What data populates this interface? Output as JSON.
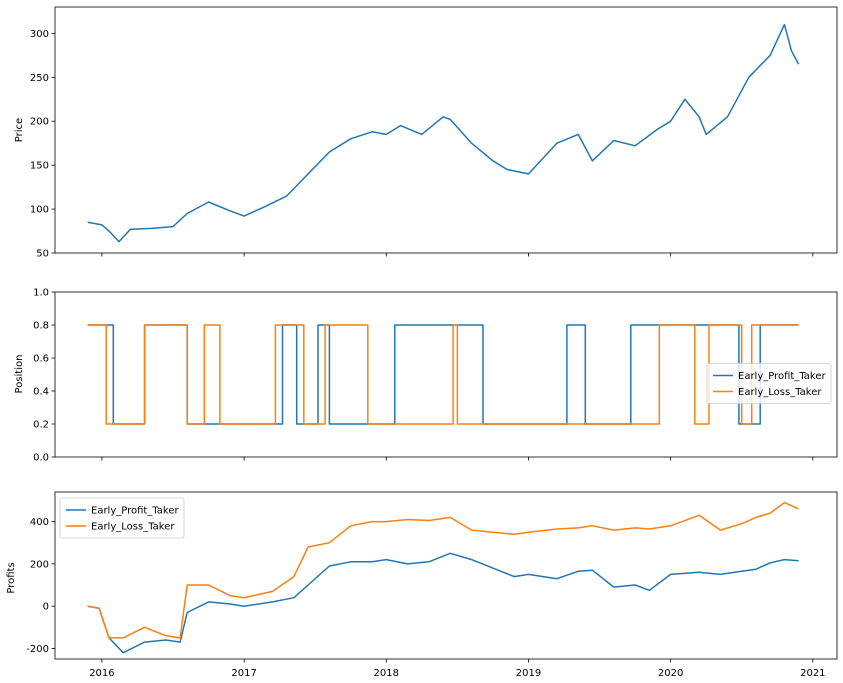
{
  "chart_data": [
    {
      "type": "line",
      "ylabel": "Price",
      "ylim": [
        50,
        330
      ],
      "yticks": [
        50,
        100,
        150,
        200,
        250,
        300
      ],
      "xlim": [
        2015.67,
        2021.17
      ],
      "x": [
        2015.9,
        2016.0,
        2016.05,
        2016.12,
        2016.2,
        2016.35,
        2016.5,
        2016.6,
        2016.75,
        2016.9,
        2017.0,
        2017.15,
        2017.3,
        2017.45,
        2017.6,
        2017.75,
        2017.9,
        2018.0,
        2018.1,
        2018.25,
        2018.4,
        2018.45,
        2018.6,
        2018.75,
        2018.85,
        2019.0,
        2019.2,
        2019.35,
        2019.45,
        2019.6,
        2019.75,
        2019.9,
        2020.0,
        2020.1,
        2020.2,
        2020.25,
        2020.4,
        2020.55,
        2020.7,
        2020.8,
        2020.85,
        2020.9
      ],
      "series": [
        {
          "color": "#1f77b4",
          "values": [
            85,
            82,
            75,
            63,
            77,
            78,
            80,
            95,
            108,
            98,
            92,
            103,
            115,
            140,
            165,
            180,
            188,
            185,
            195,
            185,
            205,
            202,
            175,
            155,
            145,
            140,
            175,
            185,
            155,
            178,
            172,
            190,
            200,
            225,
            205,
            185,
            205,
            250,
            275,
            310,
            280,
            265
          ]
        }
      ]
    },
    {
      "type": "line",
      "ylabel": "Position",
      "ylim": [
        0.0,
        1.0
      ],
      "yticks": [
        "0.0",
        "0.2",
        "0.4",
        "0.6",
        "0.8",
        "1.0"
      ],
      "xlim": [
        2015.67,
        2021.17
      ],
      "legend": {
        "position": "center-right"
      },
      "series": [
        {
          "name": "Early_Profit_Taker",
          "color": "#1f77b4",
          "x": [
            2015.9,
            2016.08,
            2016.08,
            2016.3,
            2016.3,
            2016.6,
            2016.6,
            2017.27,
            2017.27,
            2017.37,
            2017.37,
            2017.52,
            2017.52,
            2017.6,
            2017.6,
            2018.06,
            2018.06,
            2018.68,
            2018.68,
            2019.27,
            2019.27,
            2019.4,
            2019.4,
            2019.72,
            2019.72,
            2020.48,
            2020.48,
            2020.63,
            2020.63,
            2020.9
          ],
          "y": [
            0.8,
            0.8,
            0.2,
            0.2,
            0.8,
            0.8,
            0.2,
            0.2,
            0.8,
            0.8,
            0.2,
            0.2,
            0.8,
            0.8,
            0.2,
            0.2,
            0.8,
            0.8,
            0.2,
            0.2,
            0.8,
            0.8,
            0.2,
            0.2,
            0.8,
            0.8,
            0.2,
            0.2,
            0.8,
            0.8
          ]
        },
        {
          "name": "Early_Loss_Taker",
          "color": "#ff7f0e",
          "x": [
            2015.9,
            2016.03,
            2016.03,
            2016.3,
            2016.3,
            2016.6,
            2016.6,
            2016.72,
            2016.72,
            2016.83,
            2016.83,
            2017.22,
            2017.22,
            2017.42,
            2017.42,
            2017.57,
            2017.57,
            2017.87,
            2017.87,
            2018.47,
            2018.47,
            2018.5,
            2018.5,
            2019.92,
            2019.92,
            2020.17,
            2020.17,
            2020.27,
            2020.27,
            2020.5,
            2020.5,
            2020.57,
            2020.57,
            2020.9
          ],
          "y": [
            0.8,
            0.8,
            0.2,
            0.2,
            0.8,
            0.8,
            0.2,
            0.2,
            0.8,
            0.8,
            0.2,
            0.2,
            0.8,
            0.8,
            0.2,
            0.2,
            0.8,
            0.8,
            0.2,
            0.2,
            0.8,
            0.8,
            0.2,
            0.2,
            0.8,
            0.8,
            0.2,
            0.2,
            0.8,
            0.8,
            0.2,
            0.2,
            0.8,
            0.8
          ]
        }
      ]
    },
    {
      "type": "line",
      "ylabel": "Profits",
      "ylim": [
        -250,
        540
      ],
      "yticks": [
        -200,
        0,
        200,
        400
      ],
      "xlim": [
        2015.67,
        2021.17
      ],
      "xticks": [
        "2016",
        "2017",
        "2018",
        "2019",
        "2020",
        "2021"
      ],
      "legend": {
        "position": "upper-left"
      },
      "x": [
        2015.9,
        2015.98,
        2016.05,
        2016.15,
        2016.3,
        2016.45,
        2016.55,
        2016.6,
        2016.75,
        2016.9,
        2017.0,
        2017.2,
        2017.35,
        2017.45,
        2017.6,
        2017.75,
        2017.9,
        2018.0,
        2018.15,
        2018.3,
        2018.45,
        2018.6,
        2018.75,
        2018.9,
        2019.0,
        2019.2,
        2019.35,
        2019.45,
        2019.6,
        2019.75,
        2019.85,
        2020.0,
        2020.2,
        2020.35,
        2020.5,
        2020.6,
        2020.7,
        2020.8,
        2020.9
      ],
      "series": [
        {
          "name": "Early_Profit_Taker",
          "color": "#1f77b4",
          "values": [
            0,
            -10,
            -150,
            -220,
            -170,
            -160,
            -170,
            -30,
            20,
            10,
            0,
            20,
            40,
            100,
            190,
            210,
            210,
            220,
            200,
            210,
            250,
            220,
            180,
            140,
            150,
            130,
            165,
            170,
            90,
            100,
            75,
            150,
            160,
            150,
            165,
            175,
            205,
            220,
            215
          ]
        },
        {
          "name": "Early_Loss_Taker",
          "color": "#ff7f0e",
          "values": [
            0,
            -10,
            -150,
            -150,
            -100,
            -140,
            -150,
            100,
            100,
            50,
            40,
            70,
            140,
            280,
            300,
            380,
            400,
            400,
            410,
            405,
            420,
            360,
            350,
            340,
            350,
            365,
            370,
            380,
            360,
            370,
            365,
            380,
            430,
            360,
            390,
            420,
            440,
            490,
            460
          ]
        }
      ]
    }
  ]
}
